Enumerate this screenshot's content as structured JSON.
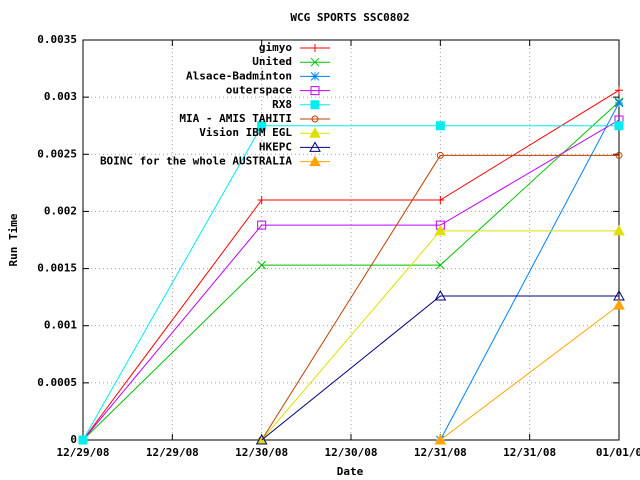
{
  "chart_data": {
    "type": "line",
    "title": "WCG SPORTS SSC0802",
    "xlabel": "Date",
    "ylabel": "Run Time",
    "x": [
      0,
      1,
      2,
      3
    ],
    "xlim": [
      0,
      3
    ],
    "xticks": [
      {
        "value": 0,
        "label": "12/29/08"
      },
      {
        "value": 0.5,
        "label": "12/29/08"
      },
      {
        "value": 1,
        "label": "12/30/08"
      },
      {
        "value": 1.5,
        "label": "12/30/08"
      },
      {
        "value": 2,
        "label": "12/31/08"
      },
      {
        "value": 2.5,
        "label": "12/31/08"
      },
      {
        "value": 3,
        "label": "01/01/0"
      }
    ],
    "ylim": [
      0,
      0.0035
    ],
    "yticks": [
      0,
      0.0005,
      0.001,
      0.0015,
      0.002,
      0.0025,
      0.003,
      0.0035
    ],
    "grid": true,
    "legend": "top-right",
    "series": [
      {
        "name": "gimyo",
        "color": "#ff0000",
        "marker": "plus",
        "values": [
          0,
          0.0021,
          0.0021,
          0.00306
        ]
      },
      {
        "name": "United",
        "color": "#00c000",
        "marker": "cross",
        "values": [
          0,
          0.00153,
          0.00153,
          0.00296
        ]
      },
      {
        "name": "Alsace-Badminton",
        "color": "#0080ff",
        "marker": "star",
        "values": [
          null,
          null,
          0,
          0.00295
        ]
      },
      {
        "name": "outerspace",
        "color": "#c000ff",
        "marker": "square",
        "values": [
          0,
          0.00188,
          0.00188,
          0.0028
        ]
      },
      {
        "name": "RX8",
        "color": "#00eeee",
        "marker": "filled-square",
        "values": [
          0,
          0.00275,
          0.00275,
          0.00275
        ]
      },
      {
        "name": "MIA - AMIS TAHITI",
        "color": "#c04000",
        "marker": "circle",
        "values": [
          null,
          0,
          0.00249,
          0.00249
        ]
      },
      {
        "name": "Vision IBM EGL",
        "color": "#e0e000",
        "marker": "filled-triangle",
        "values": [
          null,
          0,
          0.00183,
          0.00183
        ]
      },
      {
        "name": "HKEPC",
        "color": "#000080",
        "marker": "triangle",
        "values": [
          null,
          0,
          0.00126,
          0.00126
        ]
      },
      {
        "name": "BOINC for the whole AUSTRALIA",
        "color": "#ffa500",
        "marker": "filled-triangle",
        "values": [
          null,
          null,
          0,
          0.00118
        ]
      }
    ]
  }
}
